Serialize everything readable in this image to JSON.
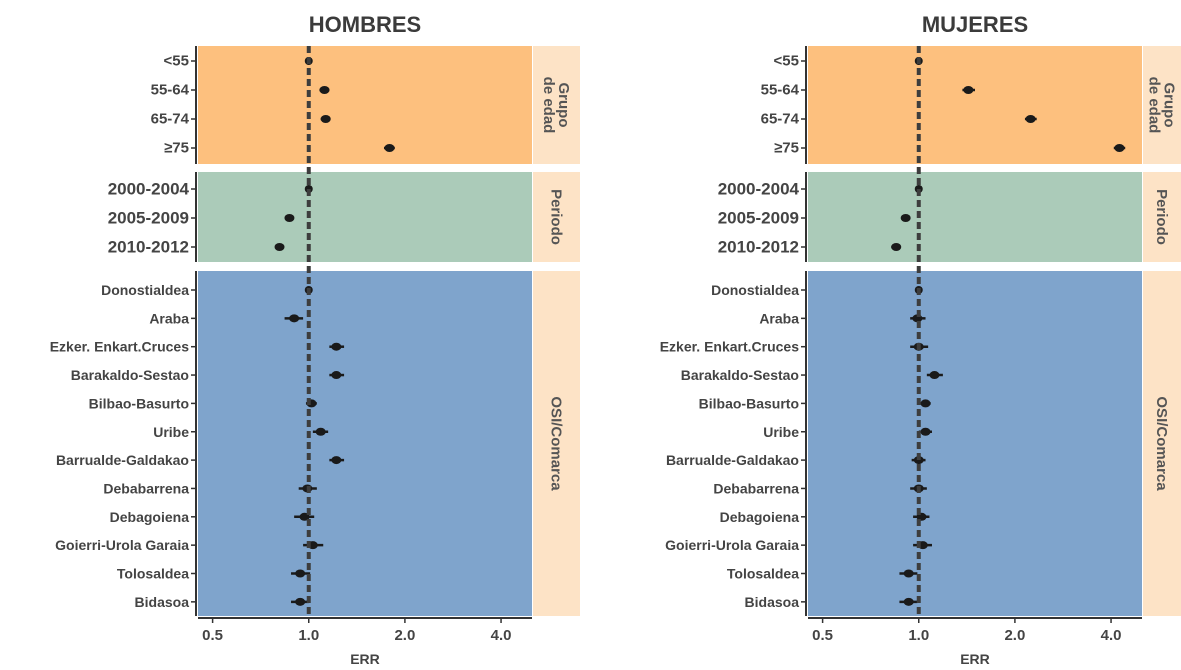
{
  "chart_data": {
    "type": "scatter",
    "xlabel": "ERR",
    "xscale": "log",
    "xticks": [
      "0.5",
      "1.0",
      "2.0",
      "4.0"
    ],
    "xlim": [
      0.45,
      5.0
    ],
    "reference_line": 1.0,
    "colors": {
      "Grupo de edad": "#fdc07e",
      "Periodo": "#abcbb9",
      "OSI/Comarca": "#7fa4cc",
      "strip": "#fde3c6",
      "point": "#1a1a1a",
      "refline": "#3d3d3d"
    },
    "groups": [
      {
        "name": "Grupo de edad",
        "strip_lines": [
          "Grupo",
          "de edad"
        ],
        "font_size": 15,
        "categories": [
          "<55",
          "55-64",
          "65-74",
          "≥75"
        ]
      },
      {
        "name": "Periodo",
        "strip_lines": [
          "Periodo"
        ],
        "font_size": 17,
        "categories": [
          "2000-2004",
          "2005-2009",
          "2010-2012"
        ]
      },
      {
        "name": "OSI/Comarca",
        "strip_lines": [
          "OSI/Comarca"
        ],
        "font_size": 14,
        "categories": [
          "Donostialdea",
          "Araba",
          "Ezker. Enkart.Cruces",
          "Barakaldo-Sestao",
          "Bilbao-Basurto",
          "Uribe",
          "Barrualde-Galdakao",
          "Debabarrena",
          "Debagoiena",
          "Goierri-Urola Garaia",
          "Tolosaldea",
          "Bidasoa"
        ]
      }
    ],
    "panels": [
      {
        "title": "HOMBRES",
        "values": {
          "Grupo de edad": [
            {
              "est": 1.0,
              "lo": 1.0,
              "hi": 1.0
            },
            {
              "est": 1.12,
              "lo": 1.08,
              "hi": 1.16
            },
            {
              "est": 1.13,
              "lo": 1.09,
              "hi": 1.17
            },
            {
              "est": 1.79,
              "lo": 1.72,
              "hi": 1.86
            }
          ],
          "Periodo": [
            {
              "est": 1.0,
              "lo": 1.0,
              "hi": 1.0
            },
            {
              "est": 0.87,
              "lo": 0.85,
              "hi": 0.89
            },
            {
              "est": 0.81,
              "lo": 0.79,
              "hi": 0.83
            }
          ],
          "OSI/Comarca": [
            {
              "est": 1.0,
              "lo": 1.0,
              "hi": 1.0
            },
            {
              "est": 0.9,
              "lo": 0.84,
              "hi": 0.96
            },
            {
              "est": 1.22,
              "lo": 1.16,
              "hi": 1.29
            },
            {
              "est": 1.22,
              "lo": 1.16,
              "hi": 1.29
            },
            {
              "est": 1.02,
              "lo": 0.98,
              "hi": 1.06
            },
            {
              "est": 1.09,
              "lo": 1.03,
              "hi": 1.15
            },
            {
              "est": 1.22,
              "lo": 1.16,
              "hi": 1.29
            },
            {
              "est": 0.99,
              "lo": 0.93,
              "hi": 1.06
            },
            {
              "est": 0.97,
              "lo": 0.9,
              "hi": 1.04
            },
            {
              "est": 1.03,
              "lo": 0.96,
              "hi": 1.11
            },
            {
              "est": 0.94,
              "lo": 0.88,
              "hi": 1.01
            },
            {
              "est": 0.94,
              "lo": 0.88,
              "hi": 1.0
            }
          ]
        }
      },
      {
        "title": "MUJERES",
        "values": {
          "Grupo de edad": [
            {
              "est": 1.0,
              "lo": 1.0,
              "hi": 1.0
            },
            {
              "est": 1.43,
              "lo": 1.37,
              "hi": 1.5
            },
            {
              "est": 2.24,
              "lo": 2.15,
              "hi": 2.34
            },
            {
              "est": 4.25,
              "lo": 4.08,
              "hi": 4.43
            }
          ],
          "Periodo": [
            {
              "est": 1.0,
              "lo": 1.0,
              "hi": 1.0
            },
            {
              "est": 0.91,
              "lo": 0.88,
              "hi": 0.94
            },
            {
              "est": 0.85,
              "lo": 0.82,
              "hi": 0.88
            }
          ],
          "OSI/Comarca": [
            {
              "est": 1.0,
              "lo": 1.0,
              "hi": 1.0
            },
            {
              "est": 0.99,
              "lo": 0.94,
              "hi": 1.05
            },
            {
              "est": 1.0,
              "lo": 0.94,
              "hi": 1.07
            },
            {
              "est": 1.12,
              "lo": 1.06,
              "hi": 1.19
            },
            {
              "est": 1.05,
              "lo": 1.01,
              "hi": 1.09
            },
            {
              "est": 1.05,
              "lo": 1.0,
              "hi": 1.1
            },
            {
              "est": 1.0,
              "lo": 0.95,
              "hi": 1.05
            },
            {
              "est": 1.0,
              "lo": 0.94,
              "hi": 1.06
            },
            {
              "est": 1.02,
              "lo": 0.96,
              "hi": 1.08
            },
            {
              "est": 1.03,
              "lo": 0.96,
              "hi": 1.1
            },
            {
              "est": 0.93,
              "lo": 0.87,
              "hi": 0.99
            },
            {
              "est": 0.93,
              "lo": 0.87,
              "hi": 0.99
            }
          ]
        }
      }
    ]
  }
}
